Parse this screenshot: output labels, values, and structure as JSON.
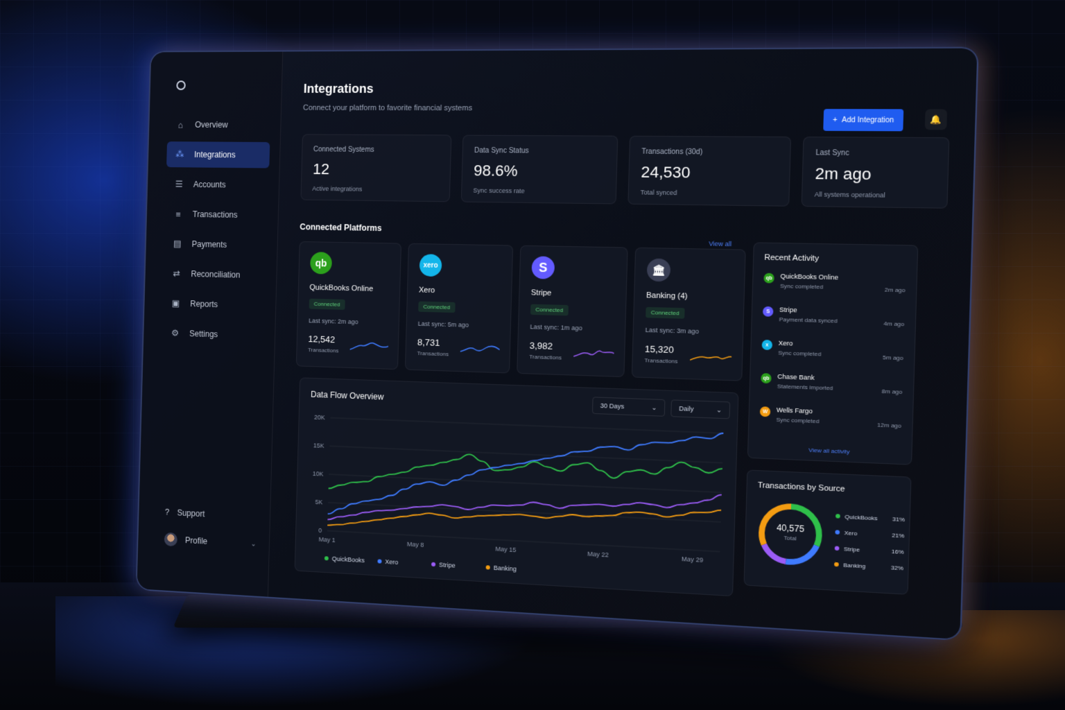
{
  "sidebar": {
    "nav": [
      {
        "label": "Overview",
        "icon": "home-icon"
      },
      {
        "label": "Integrations",
        "icon": "integrations-icon",
        "active": true
      },
      {
        "label": "Accounts",
        "icon": "database-icon"
      },
      {
        "label": "Transactions",
        "icon": "list-icon"
      },
      {
        "label": "Payments",
        "icon": "receipt-icon"
      },
      {
        "label": "Reconciliation",
        "icon": "shuffle-icon"
      },
      {
        "label": "Reports",
        "icon": "report-icon"
      },
      {
        "label": "Settings",
        "icon": "gear-icon"
      }
    ],
    "support_label": "Support",
    "profile_label": "Profile"
  },
  "header": {
    "title": "Integrations",
    "subtitle": "Connect your platform to favorite financial systems",
    "add_button": "Add Integration"
  },
  "stats": [
    {
      "label": "Connected Systems",
      "value": "12",
      "note": "Active integrations"
    },
    {
      "label": "Data Sync Status",
      "value": "98.6%",
      "note": "Sync success rate"
    },
    {
      "label": "Transactions (30d)",
      "value": "24,530",
      "note": "Total synced"
    },
    {
      "label": "Last Sync",
      "value": "2m ago",
      "note": "All systems operational"
    }
  ],
  "platforms_section": {
    "title": "Connected Platforms",
    "view_all": "View all"
  },
  "platforms": [
    {
      "name": "QuickBooks Online",
      "logo_text": "qb",
      "color": "#2ca01c",
      "status": "Connected",
      "last_sync": "Last sync: 2m ago",
      "count": "12,542",
      "unit": "Transactions",
      "spark_color": "#3f7bff"
    },
    {
      "name": "Xero",
      "logo_text": "xero",
      "color": "#13b5ea",
      "status": "Connected",
      "last_sync": "Last sync: 5m ago",
      "count": "8,731",
      "unit": "Transactions",
      "spark_color": "#3f7bff"
    },
    {
      "name": "Stripe",
      "logo_text": "S",
      "color": "#635bff",
      "status": "Connected",
      "last_sync": "Last sync: 1m ago",
      "count": "3,982",
      "unit": "Transactions",
      "spark_color": "#9b5cf6"
    },
    {
      "name": "Banking (4)",
      "logo_text": "🏛",
      "color": "#3a3f55",
      "status": "Connected",
      "last_sync": "Last sync: 3m ago",
      "count": "15,320",
      "unit": "Transactions",
      "spark_color": "#f39c12"
    }
  ],
  "flow": {
    "title": "Data Flow Overview",
    "range_select": "30 Days",
    "interval_select": "Daily"
  },
  "chart_data": {
    "type": "line",
    "x": [
      "May 1",
      "May 2",
      "May 3",
      "May 4",
      "May 5",
      "May 6",
      "May 7",
      "May 8",
      "May 9",
      "May 10",
      "May 11",
      "May 12",
      "May 13",
      "May 14",
      "May 15",
      "May 16",
      "May 17",
      "May 18",
      "May 19",
      "May 20",
      "May 21",
      "May 22",
      "May 23",
      "May 24",
      "May 25",
      "May 26",
      "May 27",
      "May 28",
      "May 29",
      "May 30",
      "May 31"
    ],
    "xticks": [
      "May 1",
      "May 8",
      "May 15",
      "May 22",
      "May 29"
    ],
    "yticks": [
      "0",
      "5K",
      "10K",
      "15K",
      "20K"
    ],
    "ylim": [
      0,
      20000
    ],
    "series": [
      {
        "name": "QuickBooks",
        "color": "#2fbf4a",
        "values": [
          7500,
          8200,
          8800,
          9000,
          10000,
          10500,
          11000,
          12000,
          12400,
          13000,
          13600,
          14600,
          13500,
          12000,
          12200,
          12800,
          13800,
          13000,
          12400,
          13600,
          14000,
          12800,
          11600,
          12800,
          13200,
          12600,
          13800,
          14800,
          14000,
          13200,
          14000
        ]
      },
      {
        "name": "Xero",
        "color": "#3f7bff",
        "values": [
          3000,
          4000,
          5000,
          5600,
          6000,
          6800,
          8000,
          9000,
          9500,
          9000,
          10000,
          11000,
          12000,
          12500,
          13000,
          13400,
          14000,
          14500,
          15000,
          15800,
          16000,
          16800,
          17000,
          16500,
          17500,
          18000,
          18000,
          18500,
          19200,
          19000,
          20000
        ]
      },
      {
        "name": "Stripe",
        "color": "#9b5cf6",
        "values": [
          2000,
          2600,
          3000,
          3600,
          4000,
          4200,
          4600,
          5000,
          5200,
          5600,
          5400,
          5000,
          5500,
          6000,
          6000,
          6200,
          6800,
          6500,
          6000,
          6600,
          6800,
          7000,
          6800,
          7200,
          7600,
          7400,
          7000,
          7600,
          8000,
          8600,
          9600
        ]
      },
      {
        "name": "Banking",
        "color": "#f39c12",
        "values": [
          1000,
          1200,
          1600,
          2000,
          2400,
          2800,
          3200,
          3600,
          4000,
          3800,
          3400,
          3700,
          4000,
          4200,
          4400,
          4600,
          4400,
          4200,
          4600,
          5000,
          4800,
          5000,
          5200,
          5800,
          6000,
          5800,
          5400,
          5800,
          6400,
          6500,
          7000
        ]
      }
    ]
  },
  "activity": {
    "title": "Recent Activity",
    "items": [
      {
        "name": "QuickBooks Online",
        "desc": "Sync completed",
        "time": "2m ago",
        "color": "#2ca01c",
        "glyph": "qb"
      },
      {
        "name": "Stripe",
        "desc": "Payment data synced",
        "time": "4m ago",
        "color": "#635bff",
        "glyph": "S"
      },
      {
        "name": "Xero",
        "desc": "Sync completed",
        "time": "5m ago",
        "color": "#13b5ea",
        "glyph": "x"
      },
      {
        "name": "Chase Bank",
        "desc": "Statements imported",
        "time": "8m ago",
        "color": "#2ca01c",
        "glyph": "qb"
      },
      {
        "name": "Wells Fargo",
        "desc": "Sync completed",
        "time": "12m ago",
        "color": "#f39c12",
        "glyph": "W"
      }
    ],
    "view_all": "View all activity"
  },
  "source": {
    "title": "Transactions by Source",
    "total": "40,575",
    "total_label": "Total",
    "items": [
      {
        "name": "QuickBooks",
        "pct": "31%",
        "value": 31,
        "color": "#2fbf4a"
      },
      {
        "name": "Xero",
        "pct": "21%",
        "value": 21,
        "color": "#3f7bff"
      },
      {
        "name": "Stripe",
        "pct": "16%",
        "value": 16,
        "color": "#9b5cf6"
      },
      {
        "name": "Banking",
        "pct": "32%",
        "value": 32,
        "color": "#f39c12"
      }
    ]
  }
}
